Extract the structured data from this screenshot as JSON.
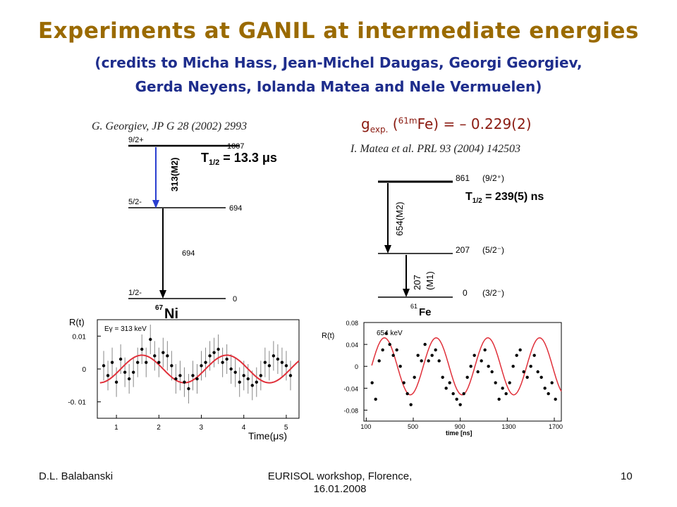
{
  "slide": {
    "title": "Experiments at GANIL at intermediate energies",
    "credits_line1": "(credits to Micha Hass, Jean-Michel Daugas, Georgi Georgiev,",
    "credits_line2": "Gerda Neyens, Iolanda Matea and Nele Vermuelen)",
    "ref_left": "G. Georgiev, JP G 28 (2002) 2993",
    "ref_right": "I. Matea et al. PRL 93 (2004) 142503",
    "gfactor": {
      "g": "g",
      "sub": "exp.",
      "open": " (",
      "sup": "61m",
      "rest": "Fe) = – 0.229(2)"
    }
  },
  "level_scheme_ni": {
    "levels": [
      {
        "spin": "9/2+",
        "energy": "1007"
      },
      {
        "spin": "5/2-",
        "energy": "694"
      },
      {
        "spin": "1/2-",
        "energy": "0"
      }
    ],
    "transition_m2": "313(M2)",
    "transition_694": "694",
    "half_life_label": "T",
    "half_life_sub": "1/2",
    "half_life_value": " = 13.3 μs",
    "nucleus_mass": "67",
    "nucleus": "Ni"
  },
  "level_scheme_fe": {
    "levels": [
      {
        "spin": "(9/2⁺)",
        "energy": "861"
      },
      {
        "spin": "(5/2⁻)",
        "energy": "207"
      },
      {
        "spin": "(3/2⁻)",
        "energy": "0"
      }
    ],
    "transition_m2": "654(M2)",
    "transition_m1_energy": "207",
    "transition_m1_type": "(M1)",
    "half_life_label": "T",
    "half_life_sub": "1/2",
    "half_life_value": " = 239(5) ns",
    "nucleus_mass": "61",
    "nucleus": "Fe"
  },
  "chart_data": [
    {
      "type": "scatter",
      "title": "",
      "annotation": "Eγ = 313 keV",
      "xlabel": "Time(μs)",
      "ylabel": "R(t)",
      "xlim": [
        0.55,
        5.3
      ],
      "ylim": [
        -0.015,
        0.015
      ],
      "x_ticks": [
        "1",
        "2",
        "3",
        "4",
        "5"
      ],
      "y_ticks": [
        "0.01",
        "0",
        "-0. 01"
      ],
      "series": [
        {
          "kind": "data-with-error-bars",
          "x": [
            0.7,
            0.8,
            0.9,
            1.0,
            1.1,
            1.2,
            1.3,
            1.4,
            1.5,
            1.6,
            1.7,
            1.8,
            1.9,
            2.0,
            2.1,
            2.2,
            2.3,
            2.4,
            2.5,
            2.6,
            2.7,
            2.8,
            2.9,
            3.0,
            3.1,
            3.2,
            3.3,
            3.4,
            3.5,
            3.6,
            3.7,
            3.8,
            3.9,
            4.0,
            4.1,
            4.2,
            4.3,
            4.4,
            4.5,
            4.6,
            4.7,
            4.8,
            4.9,
            5.0,
            5.1
          ],
          "y": [
            0.001,
            -0.002,
            0.002,
            -0.004,
            0.003,
            -0.001,
            -0.003,
            -0.001,
            0.002,
            0.006,
            0.002,
            0.009,
            0.004,
            0.002,
            0.005,
            0.004,
            0.001,
            -0.003,
            -0.002,
            -0.004,
            -0.006,
            -0.002,
            -0.003,
            0.001,
            0.002,
            0.004,
            0.005,
            0.006,
            0.002,
            0.003,
            0.0,
            -0.001,
            -0.004,
            -0.002,
            -0.003,
            -0.005,
            -0.004,
            -0.002,
            0.002,
            0.001,
            0.004,
            0.003,
            0.002,
            0.001,
            -0.002
          ],
          "err": 0.0045
        },
        {
          "kind": "fit",
          "amplitude": 0.0042,
          "period": 2.0,
          "phase_x": 1.1
        }
      ]
    },
    {
      "type": "scatter",
      "title": "",
      "annotation": "654 keV",
      "xlabel": "time [ns]",
      "ylabel": "R(t)",
      "xlim": [
        80,
        1760
      ],
      "ylim": [
        -0.1,
        0.08
      ],
      "x_ticks": [
        "100",
        "500",
        "900",
        "1300",
        "1700"
      ],
      "y_ticks": [
        "0.08",
        "0.04",
        "0",
        "-0.04",
        "-0.08"
      ],
      "series": [
        {
          "kind": "data",
          "x": [
            150,
            180,
            210,
            240,
            270,
            300,
            330,
            360,
            390,
            420,
            450,
            480,
            510,
            540,
            570,
            600,
            630,
            660,
            690,
            720,
            750,
            780,
            810,
            840,
            870,
            900,
            930,
            960,
            990,
            1020,
            1050,
            1080,
            1110,
            1140,
            1170,
            1200,
            1230,
            1260,
            1290,
            1320,
            1350,
            1380,
            1410,
            1440,
            1470,
            1500,
            1530,
            1560,
            1590,
            1620,
            1650,
            1680,
            1710
          ],
          "y": [
            -0.03,
            -0.06,
            0.01,
            0.03,
            0.06,
            0.04,
            0.02,
            0.03,
            0.0,
            -0.03,
            -0.05,
            -0.07,
            -0.02,
            0.02,
            0.01,
            0.04,
            0.01,
            0.02,
            0.03,
            0.01,
            -0.02,
            -0.04,
            -0.03,
            -0.05,
            -0.06,
            -0.07,
            -0.05,
            -0.02,
            0.0,
            0.02,
            -0.01,
            0.01,
            0.03,
            0.0,
            -0.01,
            -0.03,
            -0.06,
            -0.04,
            -0.05,
            -0.03,
            0.0,
            0.02,
            0.03,
            -0.01,
            -0.02,
            0.0,
            0.02,
            -0.01,
            -0.02,
            -0.04,
            -0.05,
            -0.03,
            -0.06
          ]
        },
        {
          "kind": "fit",
          "amplitude": 0.052,
          "period": 440,
          "phase_x": 145
        }
      ]
    }
  ],
  "footer": {
    "left": "D.L. Balabanski",
    "middle_line1": "EURISOL workshop, Florence,",
    "middle_line2": "16.01.2008",
    "right": "10"
  },
  "colors": {
    "title": "#9a6a00",
    "credits": "#1e2d8c",
    "gfactor": "#8a1a10",
    "arrow_blue": "#2a3fd0",
    "fit_red": "#e0303a"
  }
}
